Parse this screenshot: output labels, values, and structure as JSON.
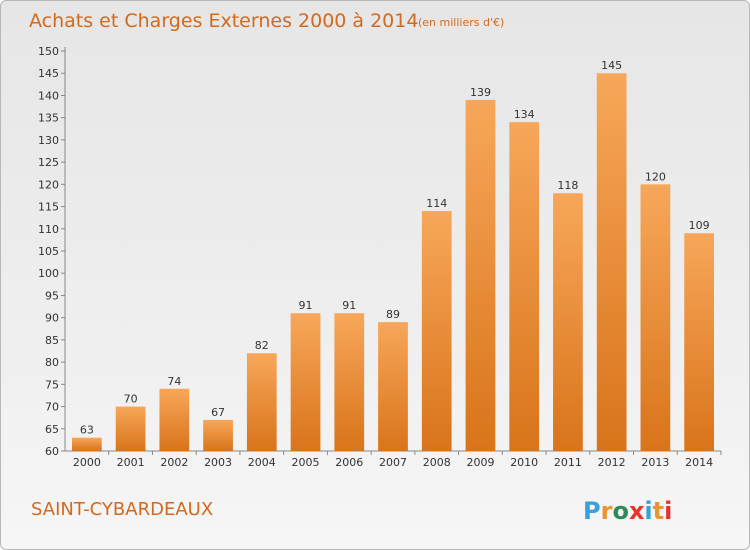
{
  "chart_data": {
    "type": "bar",
    "title": "Achats et Charges Externes 2000 à 2014",
    "subtitle": "(en milliers d'€)",
    "categories": [
      "2000",
      "2001",
      "2002",
      "2003",
      "2004",
      "2005",
      "2006",
      "2007",
      "2008",
      "2009",
      "2010",
      "2011",
      "2012",
      "2013",
      "2014"
    ],
    "values": [
      63,
      70,
      74,
      67,
      82,
      91,
      91,
      89,
      114,
      139,
      134,
      118,
      145,
      120,
      109
    ],
    "ylim": [
      60,
      150
    ],
    "yticks": [
      60,
      65,
      70,
      75,
      80,
      85,
      90,
      95,
      100,
      105,
      110,
      115,
      120,
      125,
      130,
      135,
      140,
      145,
      150
    ],
    "xlabel": "",
    "ylabel": "",
    "grid": false,
    "bar_color": "#f0922f",
    "show_data_labels": true
  },
  "footer": {
    "place": "SAINT-CYBARDEAUX",
    "logo_text": "Proxiti",
    "logo_colors": [
      "#3aa0d8",
      "#f0922f",
      "#2e8b57",
      "#e8332a",
      "#3aa0d8",
      "#f0922f",
      "#e8332a"
    ]
  }
}
